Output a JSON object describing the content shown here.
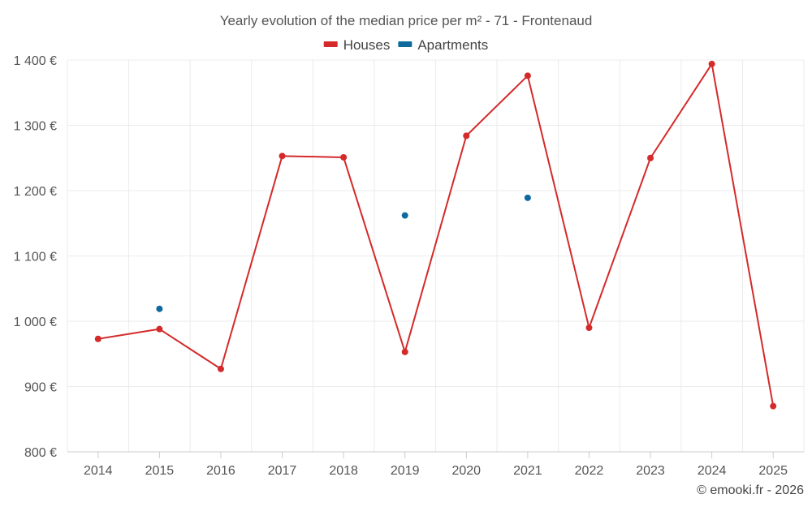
{
  "chart_data": {
    "type": "line",
    "title": "Yearly evolution of the median price per m² - 71 - Frontenaud",
    "xlabel": "",
    "ylabel": "",
    "categories": [
      "2014",
      "2015",
      "2016",
      "2017",
      "2018",
      "2019",
      "2020",
      "2021",
      "2022",
      "2023",
      "2024",
      "2025"
    ],
    "ylim": [
      800,
      1400
    ],
    "yticks": [
      800,
      900,
      1000,
      1100,
      1200,
      1300,
      1400
    ],
    "ytick_labels": [
      "800 €",
      "900 €",
      "1 000 €",
      "1 100 €",
      "1 200 €",
      "1 300 €",
      "1 400 €"
    ],
    "grid": true,
    "legend_position": "top-center",
    "series": [
      {
        "name": "Houses",
        "color": "#d42a2a",
        "values": [
          973,
          988,
          927,
          1253,
          1251,
          953,
          1284,
          1376,
          990,
          1250,
          1394,
          870
        ]
      },
      {
        "name": "Apartments",
        "color": "#0e6a9e",
        "values": [
          null,
          1019,
          null,
          null,
          null,
          1162,
          null,
          1189,
          null,
          null,
          null,
          null
        ]
      }
    ],
    "credit": "© emooki.fr - 2026"
  }
}
